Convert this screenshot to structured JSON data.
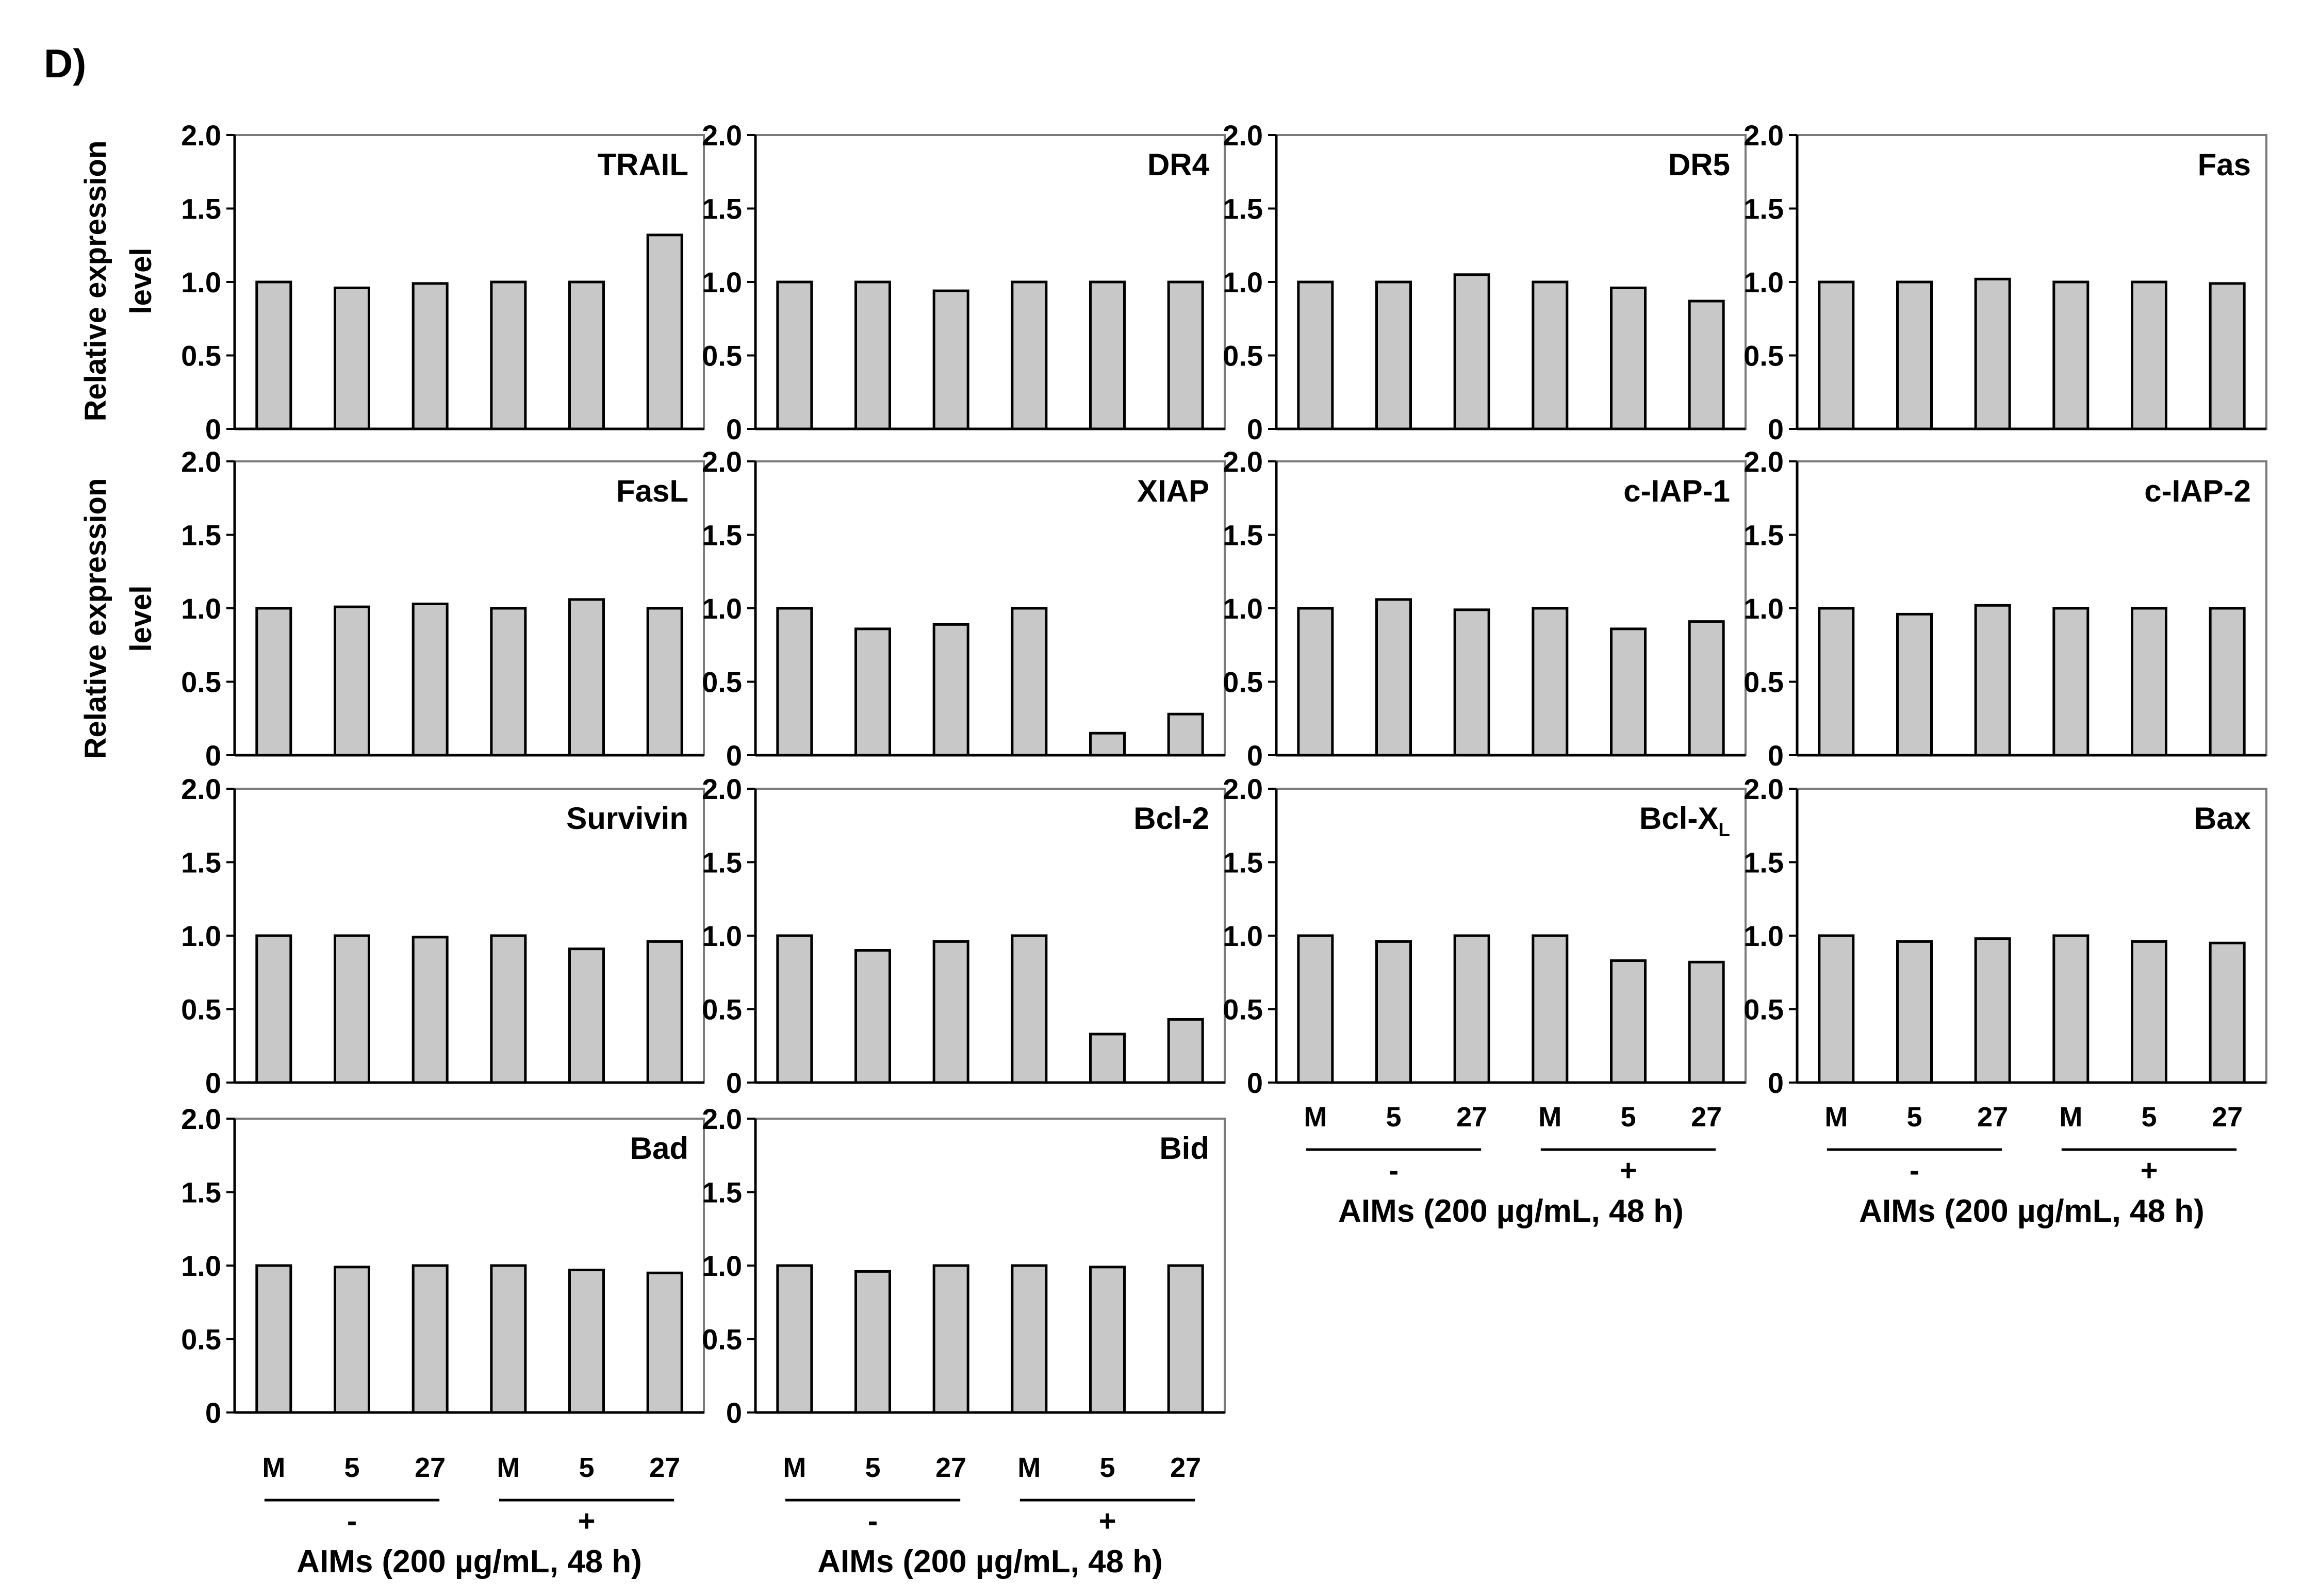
{
  "panel_label": "D)",
  "y_axis_title": [
    "Relative expression",
    "level"
  ],
  "colors": {
    "bar_fill": "#c8c8c8",
    "bar_stroke": "#000000",
    "frame": "#7a7a7a",
    "axis": "#000000",
    "text": "#000000"
  },
  "x_groups": [
    {
      "categories": [
        "M",
        "5",
        "27"
      ],
      "treatment": "-"
    },
    {
      "categories": [
        "M",
        "5",
        "27"
      ],
      "treatment": "+"
    }
  ],
  "x_axis_title": "AIMs (200 µg/mL, 48 h)",
  "chart_data": [
    {
      "type": "bar",
      "title": "TRAIL",
      "title_subscript": "",
      "categories": [
        "M",
        "5",
        "27",
        "M",
        "5",
        "27"
      ],
      "values": [
        1.0,
        0.96,
        0.99,
        1.0,
        1.0,
        1.32
      ],
      "ylim": [
        0,
        2.0
      ],
      "yticks": [
        "0",
        "0.5",
        "1.0",
        "1.5",
        "2.0"
      ]
    },
    {
      "type": "bar",
      "title": "DR4",
      "title_subscript": "",
      "categories": [
        "M",
        "5",
        "27",
        "M",
        "5",
        "27"
      ],
      "values": [
        1.0,
        1.0,
        0.94,
        1.0,
        1.0,
        1.0
      ],
      "ylim": [
        0,
        2.0
      ],
      "yticks": [
        "0",
        "0.5",
        "1.0",
        "1.5",
        "2.0"
      ]
    },
    {
      "type": "bar",
      "title": "DR5",
      "title_subscript": "",
      "categories": [
        "M",
        "5",
        "27",
        "M",
        "5",
        "27"
      ],
      "values": [
        1.0,
        1.0,
        1.05,
        1.0,
        0.96,
        0.87
      ],
      "ylim": [
        0,
        2.0
      ],
      "yticks": [
        "0",
        "0.5",
        "1.0",
        "1.5",
        "2.0"
      ]
    },
    {
      "type": "bar",
      "title": "Fas",
      "title_subscript": "",
      "categories": [
        "M",
        "5",
        "27",
        "M",
        "5",
        "27"
      ],
      "values": [
        1.0,
        1.0,
        1.02,
        1.0,
        1.0,
        0.99
      ],
      "ylim": [
        0,
        2.0
      ],
      "yticks": [
        "0",
        "0.5",
        "1.0",
        "1.5",
        "2.0"
      ]
    },
    {
      "type": "bar",
      "title": "FasL",
      "title_subscript": "",
      "categories": [
        "M",
        "5",
        "27",
        "M",
        "5",
        "27"
      ],
      "values": [
        1.0,
        1.01,
        1.03,
        1.0,
        1.06,
        1.0
      ],
      "ylim": [
        0,
        2.0
      ],
      "yticks": [
        "0",
        "0.5",
        "1.0",
        "1.5",
        "2.0"
      ]
    },
    {
      "type": "bar",
      "title": "XIAP",
      "title_subscript": "",
      "categories": [
        "M",
        "5",
        "27",
        "M",
        "5",
        "27"
      ],
      "values": [
        1.0,
        0.86,
        0.89,
        1.0,
        0.15,
        0.28
      ],
      "ylim": [
        0,
        2.0
      ],
      "yticks": [
        "0",
        "0.5",
        "1.0",
        "1.5",
        "2.0"
      ]
    },
    {
      "type": "bar",
      "title": "c-IAP-1",
      "title_subscript": "",
      "categories": [
        "M",
        "5",
        "27",
        "M",
        "5",
        "27"
      ],
      "values": [
        1.0,
        1.06,
        0.99,
        1.0,
        0.86,
        0.91
      ],
      "ylim": [
        0,
        2.0
      ],
      "yticks": [
        "0",
        "0.5",
        "1.0",
        "1.5",
        "2.0"
      ]
    },
    {
      "type": "bar",
      "title": "c-IAP-2",
      "title_subscript": "",
      "categories": [
        "M",
        "5",
        "27",
        "M",
        "5",
        "27"
      ],
      "values": [
        1.0,
        0.96,
        1.02,
        1.0,
        1.0,
        1.0
      ],
      "ylim": [
        0,
        2.0
      ],
      "yticks": [
        "0",
        "0.5",
        "1.0",
        "1.5",
        "2.0"
      ]
    },
    {
      "type": "bar",
      "title": "Survivin",
      "title_subscript": "",
      "categories": [
        "M",
        "5",
        "27",
        "M",
        "5",
        "27"
      ],
      "values": [
        1.0,
        1.0,
        0.99,
        1.0,
        0.91,
        0.96
      ],
      "ylim": [
        0,
        2.0
      ],
      "yticks": [
        "0",
        "0.5",
        "1.0",
        "1.5",
        "2.0"
      ]
    },
    {
      "type": "bar",
      "title": "Bcl-2",
      "title_subscript": "",
      "categories": [
        "M",
        "5",
        "27",
        "M",
        "5",
        "27"
      ],
      "values": [
        1.0,
        0.9,
        0.96,
        1.0,
        0.33,
        0.43
      ],
      "ylim": [
        0,
        2.0
      ],
      "yticks": [
        "0",
        "0.5",
        "1.0",
        "1.5",
        "2.0"
      ]
    },
    {
      "type": "bar",
      "title": "Bcl-X",
      "title_subscript": "L",
      "categories": [
        "M",
        "5",
        "27",
        "M",
        "5",
        "27"
      ],
      "values": [
        1.0,
        0.96,
        1.0,
        1.0,
        0.83,
        0.82
      ],
      "ylim": [
        0,
        2.0
      ],
      "yticks": [
        "0",
        "0.5",
        "1.0",
        "1.5",
        "2.0"
      ]
    },
    {
      "type": "bar",
      "title": "Bax",
      "title_subscript": "",
      "categories": [
        "M",
        "5",
        "27",
        "M",
        "5",
        "27"
      ],
      "values": [
        1.0,
        0.96,
        0.98,
        1.0,
        0.96,
        0.95
      ],
      "ylim": [
        0,
        2.0
      ],
      "yticks": [
        "0",
        "0.5",
        "1.0",
        "1.5",
        "2.0"
      ]
    },
    {
      "type": "bar",
      "title": "Bad",
      "title_subscript": "",
      "categories": [
        "M",
        "5",
        "27",
        "M",
        "5",
        "27"
      ],
      "values": [
        1.0,
        0.99,
        1.0,
        1.0,
        0.97,
        0.95
      ],
      "ylim": [
        0,
        2.0
      ],
      "yticks": [
        "0",
        "0.5",
        "1.0",
        "1.5",
        "2.0"
      ]
    },
    {
      "type": "bar",
      "title": "Bid",
      "title_subscript": "",
      "categories": [
        "M",
        "5",
        "27",
        "M",
        "5",
        "27"
      ],
      "values": [
        1.0,
        0.96,
        1.0,
        1.0,
        0.99,
        1.0
      ],
      "ylim": [
        0,
        2.0
      ],
      "yticks": [
        "0",
        "0.5",
        "1.0",
        "1.5",
        "2.0"
      ]
    }
  ]
}
